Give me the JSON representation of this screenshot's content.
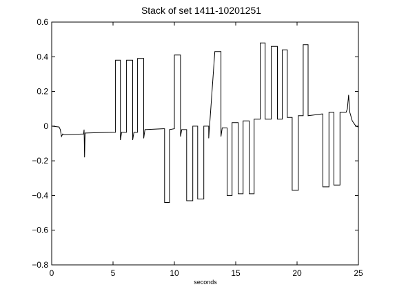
{
  "chart_data": {
    "type": "line",
    "title": "Stack of set 1411-10201251",
    "xlabel": "seconds",
    "ylabel": "",
    "xlim": [
      0,
      25
    ],
    "ylim": [
      -0.8,
      0.6
    ],
    "xticks": [
      0,
      5,
      10,
      15,
      20,
      25
    ],
    "yticks": [
      -0.8,
      -0.6,
      -0.4,
      -0.2,
      0,
      0.2,
      0.4,
      0.6
    ],
    "grid": false,
    "line_color": "#000000",
    "series": [
      {
        "values_xy": [
          [
            0.0,
            0.0
          ],
          [
            0.6,
            -0.005
          ],
          [
            0.7,
            -0.02
          ],
          [
            0.8,
            -0.06
          ],
          [
            0.9,
            -0.045
          ],
          [
            1.0,
            -0.05
          ],
          [
            2.6,
            -0.045
          ],
          [
            2.64,
            -0.02
          ],
          [
            2.68,
            -0.18
          ],
          [
            2.72,
            -0.04
          ],
          [
            5.0,
            -0.035
          ],
          [
            5.2,
            -0.035
          ],
          [
            5.2,
            0.38
          ],
          [
            5.6,
            0.38
          ],
          [
            5.6,
            -0.08
          ],
          [
            5.7,
            -0.035
          ],
          [
            6.1,
            -0.035
          ],
          [
            6.1,
            0.38
          ],
          [
            6.6,
            0.38
          ],
          [
            6.6,
            -0.08
          ],
          [
            6.7,
            -0.035
          ],
          [
            7.0,
            -0.035
          ],
          [
            7.0,
            0.39
          ],
          [
            7.5,
            0.39
          ],
          [
            7.5,
            -0.07
          ],
          [
            7.6,
            -0.02
          ],
          [
            9.1,
            -0.015
          ],
          [
            9.2,
            -0.015
          ],
          [
            9.2,
            -0.44
          ],
          [
            9.6,
            -0.44
          ],
          [
            9.6,
            -0.02
          ],
          [
            10.0,
            -0.015
          ],
          [
            10.0,
            0.41
          ],
          [
            10.5,
            0.41
          ],
          [
            10.5,
            -0.06
          ],
          [
            10.6,
            -0.02
          ],
          [
            11.0,
            -0.02
          ],
          [
            11.0,
            -0.43
          ],
          [
            11.5,
            -0.43
          ],
          [
            11.5,
            0.0
          ],
          [
            11.9,
            0.0
          ],
          [
            11.9,
            -0.42
          ],
          [
            12.4,
            -0.42
          ],
          [
            12.4,
            0.0
          ],
          [
            12.8,
            0.0
          ],
          [
            12.8,
            -0.07
          ],
          [
            13.3,
            0.43
          ],
          [
            13.8,
            0.43
          ],
          [
            13.8,
            -0.06
          ],
          [
            13.9,
            -0.01
          ],
          [
            14.3,
            -0.01
          ],
          [
            14.3,
            -0.4
          ],
          [
            14.7,
            -0.4
          ],
          [
            14.7,
            0.02
          ],
          [
            15.2,
            0.02
          ],
          [
            15.2,
            -0.39
          ],
          [
            15.6,
            -0.39
          ],
          [
            15.6,
            0.03
          ],
          [
            16.1,
            0.03
          ],
          [
            16.1,
            -0.39
          ],
          [
            16.5,
            -0.39
          ],
          [
            16.5,
            0.04
          ],
          [
            17.0,
            0.04
          ],
          [
            17.0,
            0.48
          ],
          [
            17.4,
            0.48
          ],
          [
            17.4,
            0.04
          ],
          [
            17.9,
            0.04
          ],
          [
            17.9,
            0.46
          ],
          [
            18.4,
            0.46
          ],
          [
            18.4,
            0.04
          ],
          [
            18.8,
            0.04
          ],
          [
            18.8,
            0.44
          ],
          [
            19.2,
            0.44
          ],
          [
            19.2,
            0.05
          ],
          [
            19.6,
            0.05
          ],
          [
            19.6,
            -0.37
          ],
          [
            20.1,
            -0.37
          ],
          [
            20.1,
            0.06
          ],
          [
            20.5,
            0.06
          ],
          [
            20.5,
            0.47
          ],
          [
            20.9,
            0.47
          ],
          [
            20.9,
            0.06
          ],
          [
            22.0,
            0.07
          ],
          [
            22.1,
            0.07
          ],
          [
            22.1,
            -0.35
          ],
          [
            22.6,
            -0.35
          ],
          [
            22.6,
            0.08
          ],
          [
            23.0,
            0.08
          ],
          [
            23.0,
            -0.34
          ],
          [
            23.5,
            -0.34
          ],
          [
            23.5,
            0.08
          ],
          [
            24.0,
            0.08
          ],
          [
            24.1,
            0.1
          ],
          [
            24.2,
            0.18
          ],
          [
            24.3,
            0.08
          ],
          [
            24.5,
            0.03
          ],
          [
            24.8,
            0.0
          ],
          [
            25.0,
            -0.005
          ]
        ]
      }
    ]
  }
}
